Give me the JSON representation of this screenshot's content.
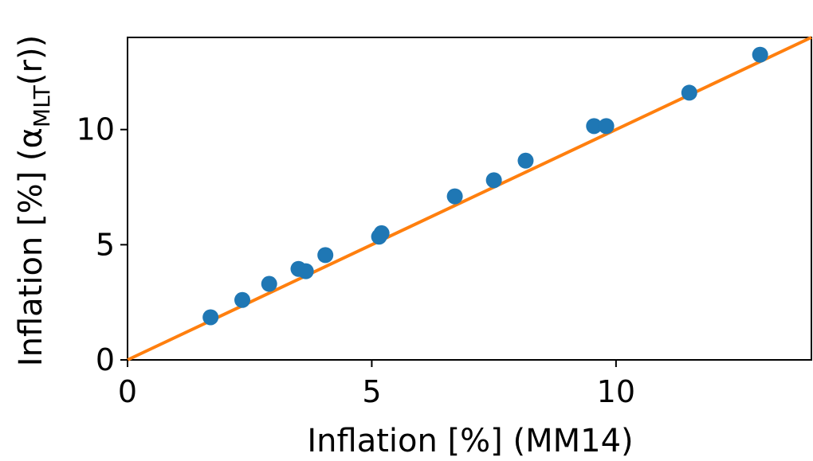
{
  "chart_data": {
    "type": "scatter",
    "xlabel": "Inflation [%] (MM14)",
    "ylabel_main": "Inflation [%] (α",
    "ylabel_sub": "MLT",
    "ylabel_tail": "(r))",
    "xlim": [
      0,
      14
    ],
    "ylim": [
      0,
      14
    ],
    "x_ticks": [
      0,
      5,
      10
    ],
    "x_tick_labels": [
      "0",
      "5",
      "10"
    ],
    "y_ticks": [
      0,
      5,
      10
    ],
    "y_tick_labels": [
      "0",
      "5",
      "10"
    ],
    "grid": false,
    "series": [
      {
        "kind": "points",
        "color": "#1f77b4",
        "x": [
          1.7,
          2.35,
          2.9,
          3.5,
          3.65,
          4.05,
          5.15,
          5.2,
          6.7,
          7.5,
          8.15,
          9.55,
          9.8,
          11.5,
          12.95
        ],
        "y": [
          1.85,
          2.6,
          3.3,
          3.95,
          3.85,
          4.55,
          5.35,
          5.5,
          7.1,
          7.8,
          8.65,
          10.15,
          10.15,
          11.6,
          13.25
        ]
      },
      {
        "kind": "line",
        "color": "#ff7f0e",
        "x": [
          0,
          14
        ],
        "y": [
          0,
          14
        ]
      }
    ]
  }
}
